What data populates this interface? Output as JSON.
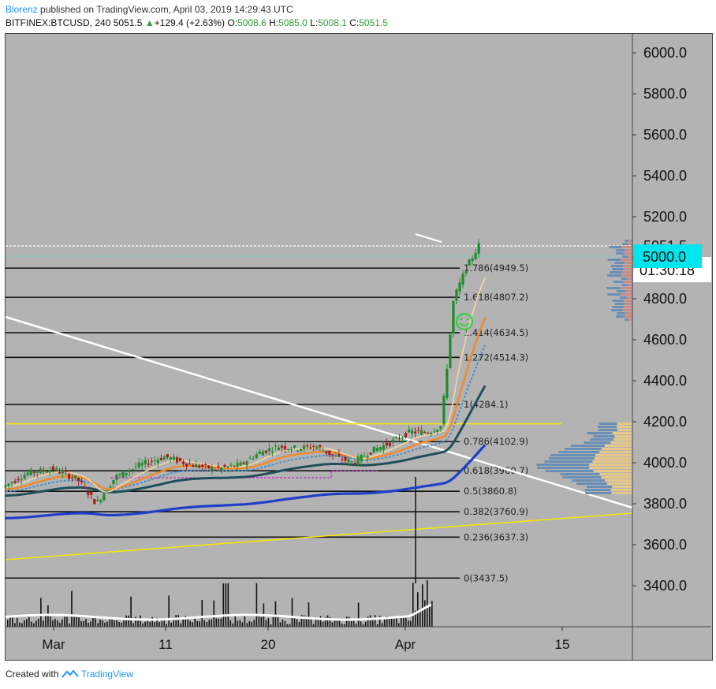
{
  "header": {
    "author": "Blorenz",
    "published_text": "published on TradingView.com, April 03, 2019 14:29:43 UTC",
    "symbol": "BITFINEX:BTCUSD, 240",
    "last": "5051.5",
    "change_arrow": "▲",
    "change": "+129.4 (+2.63%)",
    "o_label": "O:",
    "o": "5008.6",
    "h_label": "H:",
    "h": "5085.0",
    "l_label": "L:",
    "l": "5008.1",
    "c_label": "C:",
    "c": "5051.5"
  },
  "footer": {
    "created_with": "Created with",
    "brand": "TradingView",
    "logo_icon": "tradingview-logo-icon"
  },
  "colors": {
    "background": "#b3b3b3",
    "up": "#1e8c2a",
    "down": "#a61b1b",
    "fib_line": "#111111",
    "trendline": "#ffffff",
    "yellow_line": "#f5e60a",
    "ema_blue": "#1f3fc9",
    "ema_dark_teal": "#1f4f5a",
    "ema_orange": "#f08a2a",
    "ema_light": "#f2d7a8",
    "ema_sky": "#4a8fcf",
    "magenta": "#d21fd2",
    "price_tag_bg": "#00e5ee",
    "countdown_bg": "#ffffff",
    "smiley": "#2ecc40"
  },
  "chart_data": {
    "type": "candlestick",
    "y_axis": {
      "min": 3200,
      "max": 6100,
      "ticks": [
        "3400.0",
        "3600.0",
        "3800.0",
        "4000.0",
        "4200.0",
        "4400.0",
        "4600.0",
        "4800.0",
        "5000.0",
        "5200.0",
        "5400.0",
        "5600.0",
        "5800.0",
        "6000.0"
      ]
    },
    "x_axis": {
      "labels": [
        "Mar",
        "11",
        "20",
        "Apr",
        "15"
      ]
    },
    "price_tag": "5000.0",
    "last_price_label": "5051.5",
    "countdown": "01:30:18",
    "fib_levels": [
      {
        "ratio": "1.786",
        "price": 4949.5,
        "label": "1.786(4949.5)"
      },
      {
        "ratio": "1.618",
        "price": 4807.2,
        "label": "1.618(4807.2)"
      },
      {
        "ratio": "1.414",
        "price": 4634.5,
        "label": "1.414(4634.5)"
      },
      {
        "ratio": "1.272",
        "price": 4514.3,
        "label": "1.272(4514.3)"
      },
      {
        "ratio": "1",
        "price": 4284.1,
        "label": "1(4284.1)"
      },
      {
        "ratio": "0.786",
        "price": 4102.9,
        "label": "0.786(4102.9)"
      },
      {
        "ratio": "0.618",
        "price": 3960.7,
        "label": "0.618(3960.7)"
      },
      {
        "ratio": "0.5",
        "price": 3860.8,
        "label": "0.5(3860.8)"
      },
      {
        "ratio": "0.382",
        "price": 3760.9,
        "label": "0.382(3760.9)"
      },
      {
        "ratio": "0.236",
        "price": 3637.3,
        "label": "0.236(3637.3)"
      },
      {
        "ratio": "0",
        "price": 3437.5,
        "label": "0(3437.5)"
      }
    ],
    "horizontal_yellow_price": 4190,
    "price_path": [
      {
        "t": 0,
        "p": 3880
      },
      {
        "t": 0.04,
        "p": 3950
      },
      {
        "t": 0.08,
        "p": 3970
      },
      {
        "t": 0.12,
        "p": 3920
      },
      {
        "t": 0.15,
        "p": 3800
      },
      {
        "t": 0.18,
        "p": 3930
      },
      {
        "t": 0.22,
        "p": 3990
      },
      {
        "t": 0.26,
        "p": 4030
      },
      {
        "t": 0.3,
        "p": 3990
      },
      {
        "t": 0.34,
        "p": 3970
      },
      {
        "t": 0.38,
        "p": 3990
      },
      {
        "t": 0.41,
        "p": 4050
      },
      {
        "t": 0.44,
        "p": 4080
      },
      {
        "t": 0.47,
        "p": 4070
      },
      {
        "t": 0.5,
        "p": 4080
      },
      {
        "t": 0.53,
        "p": 4030
      },
      {
        "t": 0.56,
        "p": 4000
      },
      {
        "t": 0.59,
        "p": 4060
      },
      {
        "t": 0.62,
        "p": 4100
      },
      {
        "t": 0.65,
        "p": 4150
      },
      {
        "t": 0.68,
        "p": 4150
      },
      {
        "t": 0.7,
        "p": 4180
      },
      {
        "t": 0.72,
        "p": 4800
      },
      {
        "t": 0.74,
        "p": 4950
      },
      {
        "t": 0.76,
        "p": 5060
      }
    ]
  }
}
